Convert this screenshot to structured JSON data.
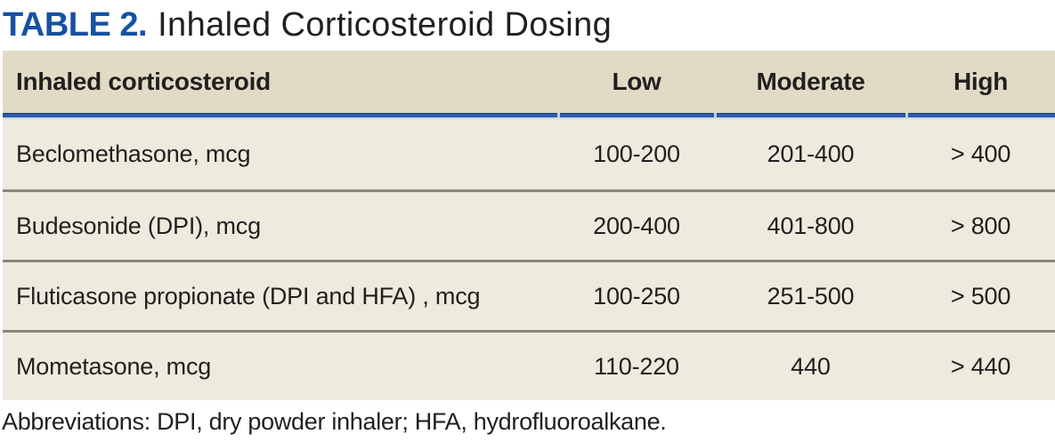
{
  "title": {
    "label": "TABLE 2.",
    "text": "Inhaled Corticosteroid Dosing"
  },
  "table": {
    "columns": [
      "Inhaled corticosteroid",
      "Low",
      "Moderate",
      "High"
    ],
    "rows": [
      [
        "Beclomethasone, mcg",
        "100-200",
        "201-400",
        "> 400"
      ],
      [
        "Budesonide (DPI), mcg",
        "200-400",
        "401-800",
        "> 800"
      ],
      [
        "Fluticasone propionate (DPI and HFA) , mcg",
        "100-250",
        "251-500",
        "> 500"
      ],
      [
        "Mometasone, mcg",
        "110-220",
        "440",
        "> 440"
      ]
    ]
  },
  "footnote": "Abbreviations: DPI, dry powder inhaler; HFA, hydrofluoroalkane.",
  "colors": {
    "title_accent": "#1751a3",
    "header_bg": "#e1dbc6",
    "row_bg": "#edebde",
    "rule_blue": "#2d5ca8",
    "divider_gray": "#8a877e"
  }
}
